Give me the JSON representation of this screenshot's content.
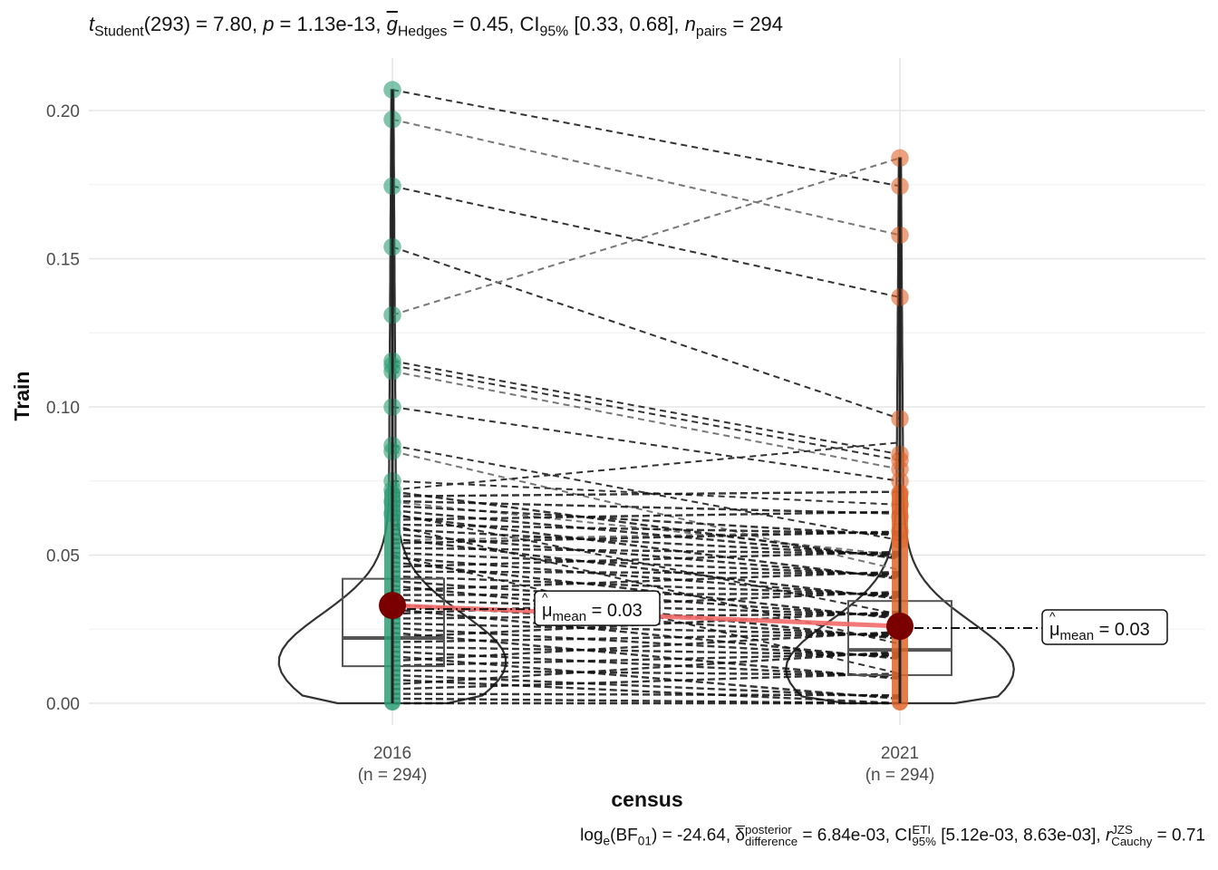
{
  "chart_data": {
    "type": "violin-box-paired",
    "xlabel": "census",
    "ylabel": "Train",
    "ylim": [
      0,
      0.21
    ],
    "yticks": [
      0.0,
      0.05,
      0.1,
      0.15,
      0.2
    ],
    "ytick_labels": [
      "0.00",
      "0.05",
      "0.10",
      "0.15",
      "0.20"
    ],
    "categories": [
      "2016",
      "2021"
    ],
    "category_n_labels": [
      "(n = 294)",
      "(n = 294)"
    ],
    "group_colors": [
      "#2e9e75",
      "#e0662c"
    ],
    "mean_color": "#7a0000",
    "mean_line_color": "#f26a6a",
    "means": [
      0.033,
      0.026
    ],
    "mean_labels": [
      "= 0.03",
      "= 0.03"
    ],
    "mean_symbol": "μ",
    "mean_subscript": "mean",
    "boxes": [
      {
        "q1": 0.0125,
        "median": 0.022,
        "q3": 0.042
      },
      {
        "q1": 0.0095,
        "median": 0.018,
        "q3": 0.0345
      }
    ],
    "upper_points": [
      [
        0.207,
        0.197,
        0.1745,
        0.154,
        0.131,
        0.1155,
        0.114,
        0.112,
        0.1,
        0.087,
        0.085,
        0.075,
        0.072,
        0.068,
        0.064
      ],
      [
        0.184,
        0.1745,
        0.158,
        0.137,
        0.096,
        0.084,
        0.082,
        0.079,
        0.075,
        0.071,
        0.067,
        0.063,
        0.058,
        0.055
      ]
    ],
    "pairs": [
      [
        0.207,
        0.1745
      ],
      [
        0.197,
        0.158
      ],
      [
        0.1745,
        0.137
      ],
      [
        0.154,
        0.096
      ],
      [
        0.131,
        0.184
      ],
      [
        0.1155,
        0.084
      ],
      [
        0.114,
        0.082
      ],
      [
        0.112,
        0.079
      ],
      [
        0.1,
        0.075
      ],
      [
        0.087,
        0.055
      ],
      [
        0.085,
        0.045
      ],
      [
        0.075,
        0.067
      ],
      [
        0.072,
        0.088
      ],
      [
        0.068,
        0.05
      ],
      [
        0.064,
        0.03
      ],
      [
        0.06,
        0.02
      ],
      [
        0.055,
        0.058
      ],
      [
        0.05,
        0.01
      ]
    ]
  },
  "stats": {
    "subtitle": {
      "t_symbol": "t",
      "t_sub": "Student",
      "t_value": "(293) = 7.80, ",
      "p_symbol": "p",
      "p_value": " = 1.13e-13, ",
      "g_symbol": "g",
      "g_sub": "Hedges",
      "g_value": " = 0.45, CI",
      "ci_sub": "95%",
      "ci_value": " [0.33, 0.68], ",
      "n_symbol": "n",
      "n_sub": "pairs",
      "n_value": " = 294"
    },
    "caption": {
      "log": "log",
      "log_sub": "e",
      "bf": "(BF",
      "bf_sub": "01",
      "bf_value": ") = -24.64, ",
      "delta_symbol": "δ",
      "delta_sup": "posterior",
      "delta_sub": "difference",
      "delta_value": " = 6.84e-03, CI",
      "ci_sup": "ETI",
      "ci_sub": "95%",
      "ci_value": " [5.12e-03, 8.63e-03], ",
      "r_symbol": "r",
      "r_sup": "JZS",
      "r_sub": "Cauchy",
      "r_value": " = 0.71"
    }
  }
}
